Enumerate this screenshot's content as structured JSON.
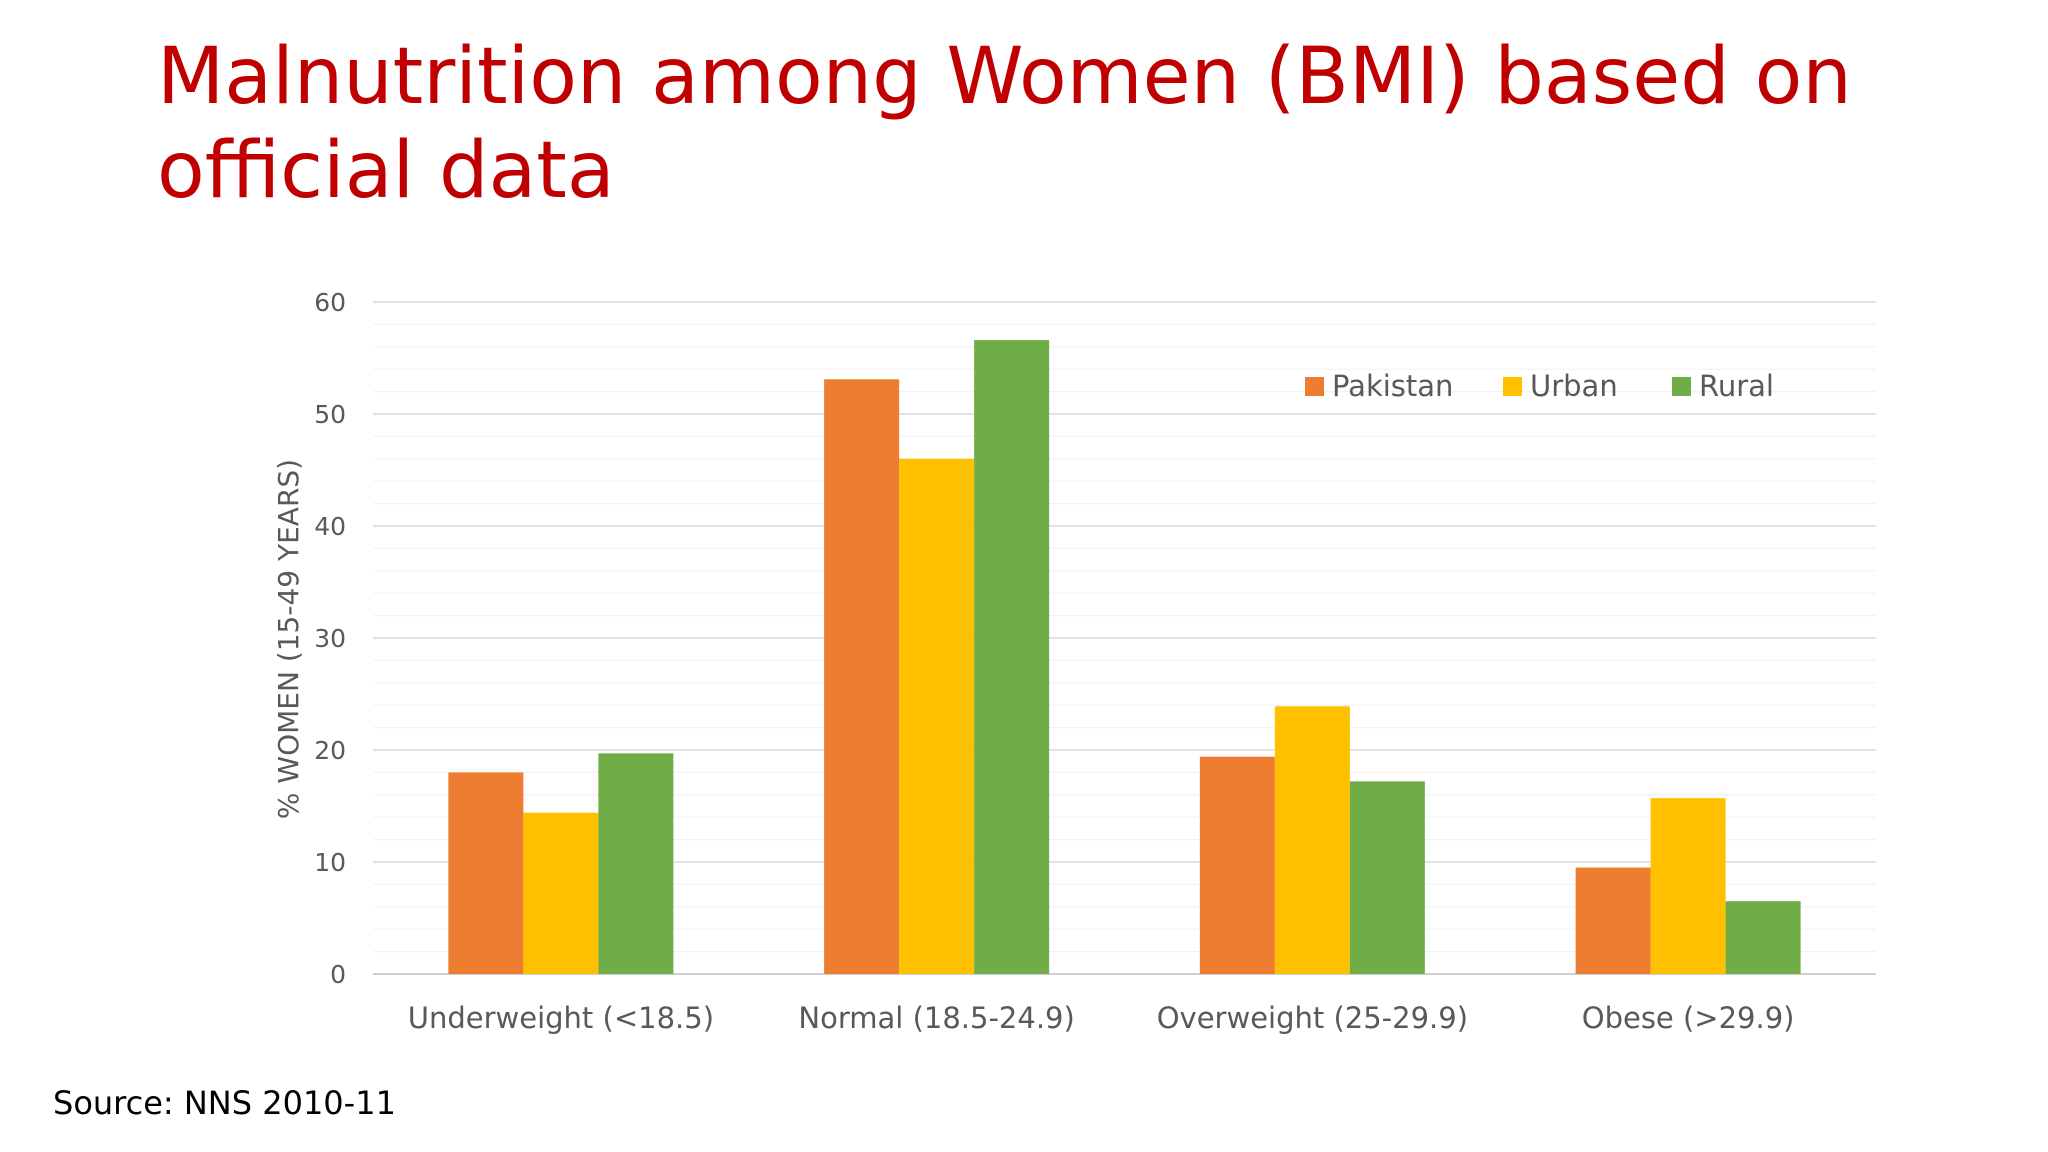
{
  "slide": {
    "title": "Malnutrition among Women (BMI) based on official data",
    "source": "Source: NNS 2010-11"
  },
  "colors": {
    "title": "#c00000",
    "pakistan": "#ed7d31",
    "urban": "#ffc000",
    "rural": "#70ad47",
    "axis_text": "#595959",
    "gridline": "#d9d9d9"
  },
  "chart_data": {
    "type": "bar",
    "title": "",
    "xlabel": "",
    "ylabel": "% WOMEN  (15-49 YEARS)",
    "ylim": [
      0,
      60
    ],
    "yticks": [
      "0",
      "10",
      "20",
      "30",
      "40",
      "50",
      "60"
    ],
    "grid": true,
    "legend_position": "top-right",
    "categories": [
      "Underweight (<18.5)",
      "Normal (18.5-24.9)",
      "Overweight (25-29.9)",
      "Obese (>29.9)"
    ],
    "series": [
      {
        "name": "Pakistan",
        "color": "#ed7d31",
        "values": [
          18,
          53.1,
          19.4,
          9.5
        ]
      },
      {
        "name": "Urban",
        "color": "#ffc000",
        "values": [
          14.4,
          46,
          23.9,
          15.7
        ]
      },
      {
        "name": "Rural",
        "color": "#70ad47",
        "values": [
          19.7,
          56.6,
          17.2,
          6.5
        ]
      }
    ]
  }
}
